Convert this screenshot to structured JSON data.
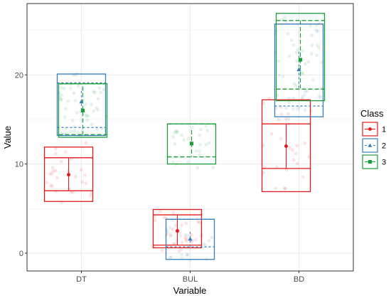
{
  "chart_data": {
    "type": "box-mean-se",
    "categories": [
      "DT",
      "BUL",
      "BD"
    ],
    "xlabel": "Variable",
    "ylabel": "Value",
    "ylim": [
      -2,
      28
    ],
    "yticks": [
      0,
      10,
      20
    ],
    "grid": true,
    "legend": {
      "title": "Class",
      "placement": "right",
      "entries": [
        "1",
        "2",
        "3"
      ]
    },
    "series": [
      {
        "name": "1",
        "color": "#e41a1c",
        "linestyle": "solid",
        "marker": "circle",
        "boxes": {
          "DT": {
            "q1": 5.8,
            "median": 7.0,
            "q3": 10.7,
            "outer_top": 11.9,
            "mean": 8.8,
            "mean_lo": 7.0,
            "mean_hi": 10.7
          },
          "BUL": {
            "q1": 0.6,
            "median": 0.9,
            "q3": 4.3,
            "outer_top": 4.9,
            "mean": 2.5,
            "mean_lo": 0.9,
            "mean_hi": 4.3
          },
          "BD": {
            "q1": 6.9,
            "median": 9.5,
            "q3": 14.5,
            "outer_top": 17.2,
            "mean": 12.0,
            "mean_lo": 9.5,
            "mean_hi": 14.5
          }
        }
      },
      {
        "name": "2",
        "color": "#377eb8",
        "linestyle": "dotted",
        "marker": "triangle",
        "boxes": {
          "DT": {
            "q1": 13.2,
            "median": 14.1,
            "q3": 19.1,
            "outer_top": 20.1,
            "mean": 17.0,
            "mean_lo": 15.8,
            "mean_hi": 18.2
          },
          "BUL": {
            "q1": -0.7,
            "median": 0.7,
            "q3": 3.8,
            "outer_top": 3.8,
            "mean": 1.6,
            "mean_lo": 0.5,
            "mean_hi": 2.4
          },
          "BD": {
            "q1": 15.3,
            "median": 16.5,
            "q3": 25.7,
            "outer_top": 25.7,
            "mean": 20.6,
            "mean_lo": 18.5,
            "mean_hi": 22.6
          }
        }
      },
      {
        "name": "3",
        "color": "#1a9e3a",
        "linestyle": "dashed",
        "marker": "square",
        "boxes": {
          "DT": {
            "q1": 13.0,
            "median": 13.3,
            "q3": 19.0,
            "outer_top": 19.0,
            "mean": 16.0,
            "mean_lo": 13.3,
            "mean_hi": 18.7
          },
          "BUL": {
            "q1": 10.0,
            "median": 10.8,
            "q3": 14.5,
            "outer_top": 14.5,
            "mean": 12.3,
            "mean_lo": 10.8,
            "mean_hi": 13.8
          },
          "BD": {
            "q1": 17.1,
            "median": 18.4,
            "q3": 26.1,
            "outer_top": 26.9,
            "mean": 21.7,
            "mean_lo": 18.5,
            "mean_hi": 26.1
          }
        }
      }
    ]
  }
}
